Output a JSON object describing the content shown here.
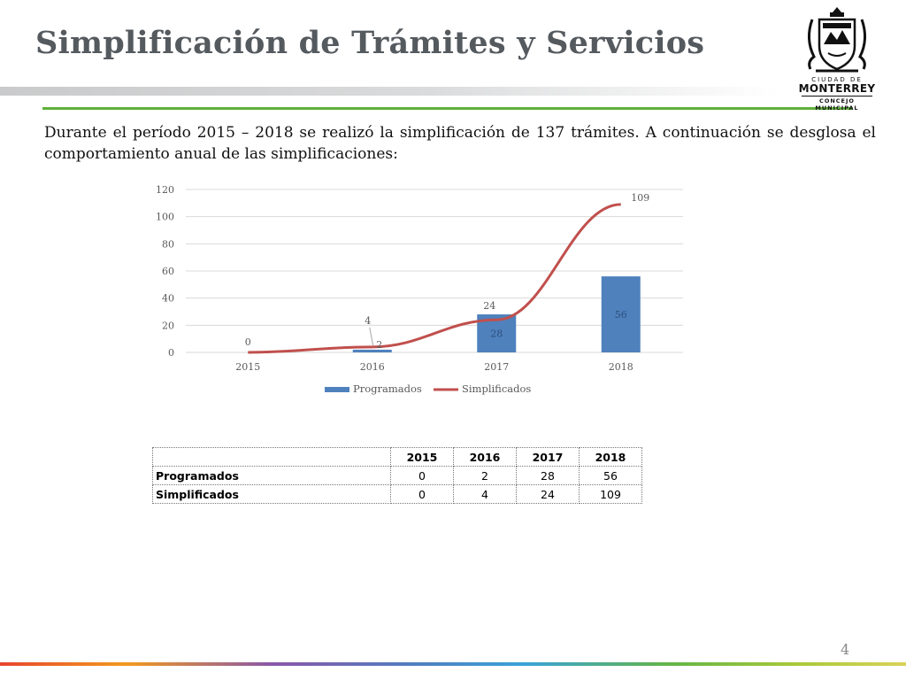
{
  "page": {
    "title": "Simplificación de Trámites y Servicios",
    "intro": "Durante el período 2015 – 2018 se realizó la simplificación de 137 trámites. A continuación se desglosa el comportamiento anual de las simplificaciones:",
    "page_number": "4"
  },
  "logo": {
    "line1": "CIUDAD DE",
    "line2": "MONTERREY",
    "line3": "CONCEJO MUNICIPAL"
  },
  "colors": {
    "bar": "#4f81bd",
    "line": "#c0504d",
    "accent_green": "#5fb13a",
    "title": "#555a5f"
  },
  "chart_data": {
    "type": "bar",
    "categories": [
      "2015",
      "2016",
      "2017",
      "2018"
    ],
    "series": [
      {
        "name": "Programados",
        "type": "bar",
        "values": [
          0,
          2,
          28,
          56
        ]
      },
      {
        "name": "Simplificados",
        "type": "line",
        "values": [
          0,
          4,
          24,
          109
        ]
      }
    ],
    "ylim": [
      0,
      120
    ],
    "yticks": [
      "0",
      "20",
      "40",
      "60",
      "80",
      "100",
      "120"
    ],
    "grid": true,
    "legend": "bottom",
    "data_labels": true
  },
  "table": {
    "headers": [
      "",
      "2015",
      "2016",
      "2017",
      "2018"
    ],
    "rows": [
      {
        "label": "Programados",
        "values": [
          "0",
          "2",
          "28",
          "56"
        ]
      },
      {
        "label": "Simplificados",
        "values": [
          "0",
          "4",
          "24",
          "109"
        ]
      }
    ]
  }
}
